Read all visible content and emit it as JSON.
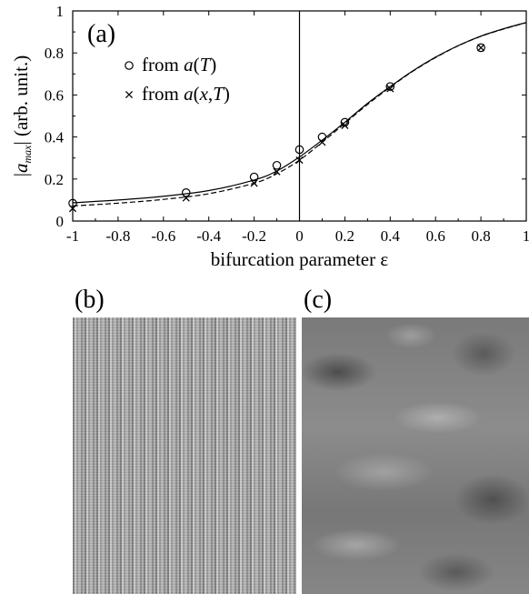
{
  "chart_data": {
    "type": "scatter",
    "panel_label": "(a)",
    "xlabel": "bifurcation parameter ε",
    "ylabel_parts": {
      "bar_left": "|",
      "symbol": "a",
      "subscript": "max",
      "bar_right": "|",
      "unit": " (arb. unit.)"
    },
    "xlim": [
      -1,
      1
    ],
    "ylim": [
      0,
      1
    ],
    "x_ticks": [
      -1,
      -0.8,
      -0.6,
      -0.4,
      -0.2,
      0,
      0.2,
      0.4,
      0.6,
      0.8,
      1
    ],
    "x_tick_labels": [
      "-1",
      "-0.8",
      "-0.6",
      "-0.4",
      "-0.2",
      "0",
      "0.2",
      "0.4",
      "0.6",
      "0.8",
      "1"
    ],
    "y_ticks": [
      0,
      0.2,
      0.4,
      0.6,
      0.8,
      1
    ],
    "y_tick_labels": [
      "0",
      "0.2",
      "0.4",
      "0.6",
      "0.8",
      "1"
    ],
    "vertical_reference_line_x": 0,
    "grid": false,
    "legend_position": "top-left",
    "series": [
      {
        "name": "from a(T)",
        "legend_parts": [
          "from ",
          "a",
          "(",
          "T",
          ")"
        ],
        "marker": "circle",
        "x": [
          -1,
          -0.5,
          -0.2,
          -0.1,
          0,
          0.1,
          0.2,
          0.4,
          0.8
        ],
        "y": [
          0.085,
          0.135,
          0.21,
          0.265,
          0.34,
          0.4,
          0.47,
          0.64,
          0.825
        ]
      },
      {
        "name": "from a(x,T)",
        "legend_parts": [
          "from ",
          "a",
          "(",
          "x",
          ",",
          "T",
          ")"
        ],
        "marker": "cross",
        "x": [
          -1,
          -0.5,
          -0.2,
          -0.1,
          0,
          0.1,
          0.2,
          0.4,
          0.8
        ],
        "y": [
          0.06,
          0.11,
          0.18,
          0.235,
          0.29,
          0.375,
          0.455,
          0.63,
          0.825
        ]
      }
    ],
    "fit_curves": [
      {
        "style": "solid",
        "x": [
          -1,
          -0.8,
          -0.6,
          -0.4,
          -0.2,
          -0.1,
          0,
          0.1,
          0.2,
          0.3,
          0.4,
          0.5,
          0.6,
          0.7,
          0.8,
          0.9,
          1
        ],
        "y": [
          0.087,
          0.1,
          0.118,
          0.145,
          0.195,
          0.238,
          0.305,
          0.385,
          0.47,
          0.56,
          0.64,
          0.715,
          0.78,
          0.835,
          0.88,
          0.915,
          0.945
        ]
      },
      {
        "style": "dashed",
        "x": [
          -1,
          -0.8,
          -0.6,
          -0.4,
          -0.2,
          -0.1,
          0,
          0.1,
          0.2,
          0.3,
          0.4,
          0.5,
          0.6,
          0.7,
          0.8,
          0.9,
          1
        ],
        "y": [
          0.072,
          0.085,
          0.103,
          0.13,
          0.18,
          0.225,
          0.29,
          0.375,
          0.465,
          0.555,
          0.637,
          0.713,
          0.778,
          0.834,
          0.879,
          0.914,
          0.944
        ]
      }
    ]
  },
  "panels": {
    "b_label": "(b)",
    "c_label": "(c)"
  }
}
